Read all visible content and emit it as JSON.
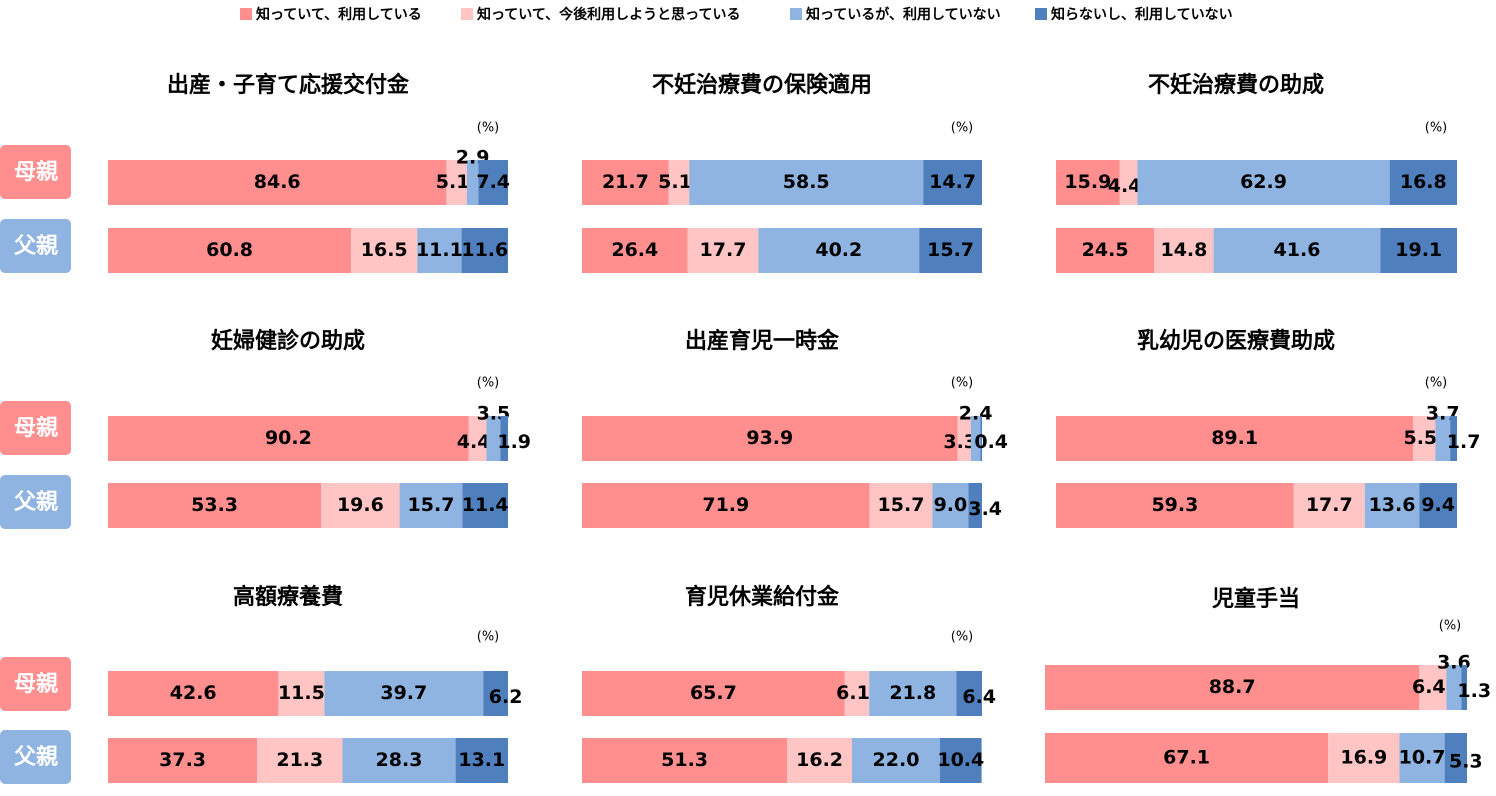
{
  "legend": [
    {
      "label": "知っていて、利用している",
      "color": "#ff8f8f"
    },
    {
      "label": "知っていて、今後利用しようと思っている",
      "color": "#ffc4c4"
    },
    {
      "label": "知っているが、利用していない",
      "color": "#90b4e2"
    },
    {
      "label": "知らないし、利用していない",
      "color": "#4f80bd"
    }
  ],
  "row_labels": {
    "mother": "母親",
    "father": "父親"
  },
  "row_label_colors": {
    "mother": "#ff8f8f",
    "father": "#90b4e2"
  },
  "unit": "(%)",
  "chart_data": [
    {
      "type": "bar",
      "orientation": "horizontal-stacked",
      "title": "出産・子育て応援交付金",
      "categories": [
        "母親",
        "父親"
      ],
      "series": [
        {
          "name": "知っていて、利用している",
          "values": [
            84.6,
            60.8
          ]
        },
        {
          "name": "知っていて、今後利用しようと思っている",
          "values": [
            5.1,
            16.5
          ]
        },
        {
          "name": "知っているが、利用していない",
          "values": [
            2.9,
            11.1
          ]
        },
        {
          "name": "知らないし、利用していない",
          "values": [
            7.4,
            11.6
          ]
        }
      ],
      "unit": "(%)"
    },
    {
      "type": "bar",
      "orientation": "horizontal-stacked",
      "title": "不妊治療費の保険適用",
      "categories": [
        "母親",
        "父親"
      ],
      "series": [
        {
          "name": "知っていて、利用している",
          "values": [
            21.7,
            26.4
          ]
        },
        {
          "name": "知っていて、今後利用しようと思っている",
          "values": [
            5.1,
            17.7
          ]
        },
        {
          "name": "知っているが、利用していない",
          "values": [
            58.5,
            40.2
          ]
        },
        {
          "name": "知らないし、利用していない",
          "values": [
            14.7,
            15.7
          ]
        }
      ],
      "unit": "(%)"
    },
    {
      "type": "bar",
      "orientation": "horizontal-stacked",
      "title": "不妊治療費の助成",
      "categories": [
        "母親",
        "父親"
      ],
      "series": [
        {
          "name": "知っていて、利用している",
          "values": [
            15.9,
            24.5
          ]
        },
        {
          "name": "知っていて、今後利用しようと思っている",
          "values": [
            4.4,
            14.8
          ]
        },
        {
          "name": "知っているが、利用していない",
          "values": [
            62.9,
            41.6
          ]
        },
        {
          "name": "知らないし、利用していない",
          "values": [
            16.8,
            19.1
          ]
        }
      ],
      "unit": "(%)"
    },
    {
      "type": "bar",
      "orientation": "horizontal-stacked",
      "title": "妊婦健診の助成",
      "categories": [
        "母親",
        "父親"
      ],
      "series": [
        {
          "name": "知っていて、利用している",
          "values": [
            90.2,
            53.3
          ]
        },
        {
          "name": "知っていて、今後利用しようと思っている",
          "values": [
            4.4,
            19.6
          ]
        },
        {
          "name": "知っているが、利用していない",
          "values": [
            3.5,
            15.7
          ]
        },
        {
          "name": "知らないし、利用していない",
          "values": [
            1.9,
            11.4
          ]
        }
      ],
      "unit": "(%)"
    },
    {
      "type": "bar",
      "orientation": "horizontal-stacked",
      "title": "出産育児一時金",
      "categories": [
        "母親",
        "父親"
      ],
      "series": [
        {
          "name": "知っていて、利用している",
          "values": [
            93.9,
            71.9
          ]
        },
        {
          "name": "知っていて、今後利用しようと思っている",
          "values": [
            3.3,
            15.7
          ]
        },
        {
          "name": "知っているが、利用していない",
          "values": [
            2.4,
            9.0
          ]
        },
        {
          "name": "知らないし、利用していない",
          "values": [
            0.4,
            3.4
          ]
        }
      ],
      "unit": "(%)"
    },
    {
      "type": "bar",
      "orientation": "horizontal-stacked",
      "title": "乳幼児の医療費助成",
      "categories": [
        "母親",
        "父親"
      ],
      "series": [
        {
          "name": "知っていて、利用している",
          "values": [
            89.1,
            59.3
          ]
        },
        {
          "name": "知っていて、今後利用しようと思っている",
          "values": [
            5.5,
            17.7
          ]
        },
        {
          "name": "知っているが、利用していない",
          "values": [
            3.7,
            13.6
          ]
        },
        {
          "name": "知らないし、利用していない",
          "values": [
            1.7,
            9.4
          ]
        }
      ],
      "unit": "(%)"
    },
    {
      "type": "bar",
      "orientation": "horizontal-stacked",
      "title": "高額療養費",
      "categories": [
        "母親",
        "父親"
      ],
      "series": [
        {
          "name": "知っていて、利用している",
          "values": [
            42.6,
            37.3
          ]
        },
        {
          "name": "知っていて、今後利用しようと思っている",
          "values": [
            11.5,
            21.3
          ]
        },
        {
          "name": "知っているが、利用していない",
          "values": [
            39.7,
            28.3
          ]
        },
        {
          "name": "知らないし、利用していない",
          "values": [
            6.2,
            13.1
          ]
        }
      ],
      "unit": "(%)"
    },
    {
      "type": "bar",
      "orientation": "horizontal-stacked",
      "title": "育児休業給付金",
      "categories": [
        "母親",
        "父親"
      ],
      "series": [
        {
          "name": "知っていて、利用している",
          "values": [
            65.7,
            51.3
          ]
        },
        {
          "name": "知っていて、今後利用しようと思っている",
          "values": [
            6.1,
            16.2
          ]
        },
        {
          "name": "知っているが、利用していない",
          "values": [
            21.8,
            22.0
          ]
        },
        {
          "name": "知らないし、利用していない",
          "values": [
            6.4,
            10.4
          ]
        }
      ],
      "unit": "(%)"
    },
    {
      "type": "bar",
      "orientation": "horizontal-stacked",
      "title": "児童手当",
      "categories": [
        "母親",
        "父親"
      ],
      "series": [
        {
          "name": "知っていて、利用している",
          "values": [
            88.7,
            67.1
          ]
        },
        {
          "name": "知っていて、今後利用しようと思っている",
          "values": [
            6.4,
            16.9
          ]
        },
        {
          "name": "知っているが、利用していない",
          "values": [
            3.6,
            10.7
          ]
        },
        {
          "name": "知らないし、利用していない",
          "values": [
            1.3,
            5.3
          ]
        }
      ],
      "unit": "(%)"
    }
  ]
}
